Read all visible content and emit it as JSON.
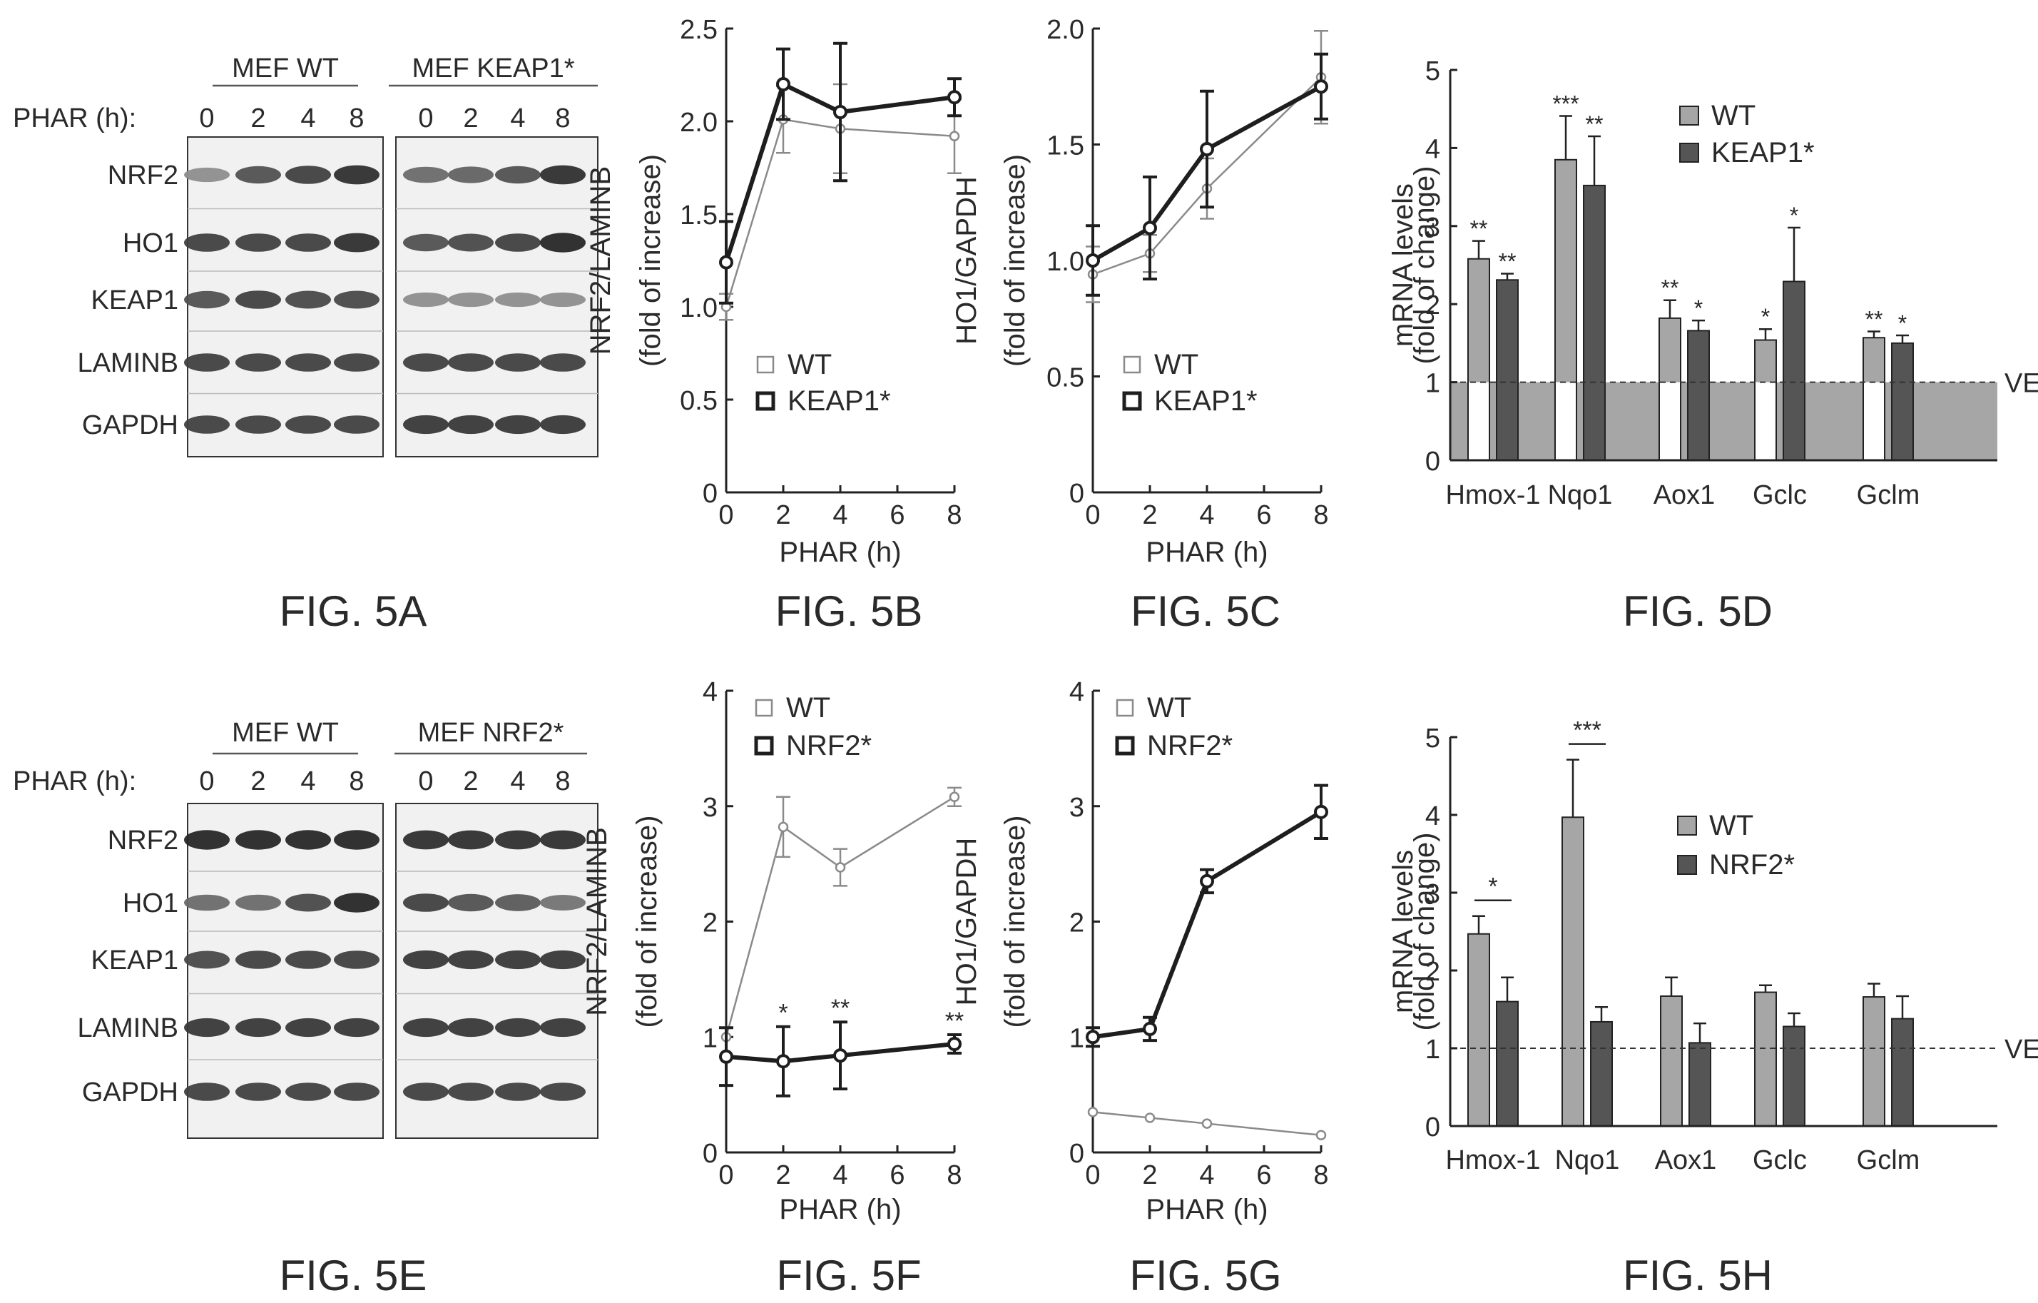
{
  "blots": [
    {
      "time_label": "PHAR (h):",
      "groups": [
        {
          "title": "MEF WT",
          "times": [
            "0",
            "2",
            "4",
            "8"
          ]
        },
        {
          "title": "MEF KEAP1*",
          "times": [
            "0",
            "2",
            "4",
            "8"
          ]
        }
      ],
      "rows": [
        "NRF2",
        "HO1",
        "KEAP1",
        "LAMINB",
        "GAPDH"
      ],
      "caption": "FIG. 5A"
    },
    {
      "time_label": "PHAR (h):",
      "groups": [
        {
          "title": "MEF WT",
          "times": [
            "0",
            "2",
            "4",
            "8"
          ]
        },
        {
          "title": "MEF NRF2*",
          "times": [
            "0",
            "2",
            "4",
            "8"
          ]
        }
      ],
      "rows": [
        "NRF2",
        "HO1",
        "KEAP1",
        "LAMINB",
        "GAPDH"
      ],
      "caption": "FIG. 5E"
    }
  ],
  "chart_data": [
    {
      "type": "line",
      "caption": "FIG. 5B",
      "xlabel": "PHAR (h)",
      "ylabel": [
        "NRF2/LAMINB",
        "(fold of increase)"
      ],
      "x": [
        0,
        2,
        4,
        8
      ],
      "xticks": [
        0,
        2,
        4,
        6,
        8
      ],
      "xlim": [
        0,
        8
      ],
      "yticks": [
        "0",
        "0.5",
        "1.0",
        "1.5",
        "2.0",
        "2.5"
      ],
      "ylim": [
        0,
        2.5
      ],
      "legend": "bottom-right",
      "series": [
        {
          "name": "WT",
          "style": "thin",
          "values": [
            1.0,
            2.01,
            1.96,
            1.92
          ],
          "err": [
            0.07,
            0.18,
            0.24,
            0.2
          ]
        },
        {
          "name": "KEAP1*",
          "style": "thick",
          "values": [
            1.24,
            2.2,
            2.05,
            2.13
          ],
          "err": [
            0.22,
            0.19,
            0.37,
            0.1
          ]
        }
      ]
    },
    {
      "type": "line",
      "caption": "FIG. 5C",
      "xlabel": "PHAR (h)",
      "ylabel": [
        "HO1/GAPDH",
        "(fold of increase)"
      ],
      "x": [
        0,
        2,
        4,
        8
      ],
      "xticks": [
        0,
        2,
        4,
        6,
        8
      ],
      "xlim": [
        0,
        8
      ],
      "yticks": [
        "0",
        "0.5",
        "1.0",
        "1.5",
        "2.0"
      ],
      "ylim": [
        0,
        2.0
      ],
      "legend": "bottom-right",
      "series": [
        {
          "name": "WT",
          "style": "thin",
          "values": [
            0.94,
            1.03,
            1.31,
            1.79
          ],
          "err": [
            0.12,
            0.08,
            0.13,
            0.2
          ]
        },
        {
          "name": "KEAP1*",
          "style": "thick",
          "values": [
            1.0,
            1.14,
            1.48,
            1.75
          ],
          "err": [
            0.15,
            0.22,
            0.25,
            0.14
          ]
        }
      ]
    },
    {
      "type": "bar",
      "caption": "FIG. 5D",
      "ylabel": [
        "mRNA levels",
        "(fold of change)"
      ],
      "categories": [
        "Hmox-1",
        "Nqo1",
        "Aox1",
        "Gclc",
        "Gclm"
      ],
      "yticks": [
        "0",
        "1",
        "2",
        "3",
        "4",
        "5"
      ],
      "ylim": [
        0,
        5
      ],
      "reference": {
        "value": 1,
        "label": "VEH"
      },
      "shaded_below_reference": true,
      "legend": "top-right",
      "series": [
        {
          "name": "WT",
          "values": [
            2.58,
            3.85,
            1.82,
            1.54,
            1.57
          ],
          "err": [
            0.23,
            0.56,
            0.23,
            0.14,
            0.08
          ],
          "sig": [
            "**",
            "***",
            "**",
            "*",
            "**"
          ]
        },
        {
          "name": "KEAP1*",
          "values": [
            2.31,
            3.52,
            1.66,
            2.29,
            1.5
          ],
          "err": [
            0.08,
            0.63,
            0.13,
            0.69,
            0.1
          ],
          "sig": [
            "**",
            "**",
            "*",
            "*",
            "*"
          ]
        }
      ]
    },
    {
      "type": "line",
      "caption": "FIG. 5F",
      "xlabel": "PHAR (h)",
      "ylabel": [
        "NRF2/LAMINB",
        "(fold of increase)"
      ],
      "x": [
        0,
        2,
        4,
        8
      ],
      "xticks": [
        0,
        2,
        4,
        6,
        8
      ],
      "xlim": [
        0,
        8
      ],
      "yticks": [
        "0",
        "1",
        "2",
        "3",
        "4"
      ],
      "ylim": [
        0,
        4
      ],
      "legend": "top-left",
      "series": [
        {
          "name": "WT",
          "style": "thin",
          "values": [
            1.0,
            2.82,
            2.47,
            3.08
          ],
          "err": [
            0.0,
            0.26,
            0.16,
            0.08
          ]
        },
        {
          "name": "NRF2*",
          "style": "thick",
          "values": [
            0.83,
            0.79,
            0.84,
            0.94
          ],
          "err": [
            0.25,
            0.3,
            0.29,
            0.08
          ],
          "sig": [
            "",
            "*",
            "**",
            "**"
          ]
        }
      ]
    },
    {
      "type": "line",
      "caption": "FIG. 5G",
      "xlabel": "PHAR (h)",
      "ylabel": [
        "HO1/GAPDH",
        "(fold of increase)"
      ],
      "x": [
        0,
        2,
        4,
        8
      ],
      "xticks": [
        0,
        2,
        4,
        6,
        8
      ],
      "xlim": [
        0,
        8
      ],
      "yticks": [
        "0",
        "1",
        "2",
        "3",
        "4"
      ],
      "ylim": [
        0,
        4
      ],
      "legend": "top-left",
      "series": [
        {
          "name": "WT",
          "style": "thin",
          "values": [
            0.35,
            0.3,
            0.25,
            0.15
          ],
          "err": [
            0.0,
            0.0,
            0.0,
            0.0
          ]
        },
        {
          "name": "NRF2*",
          "style": "thick",
          "values": [
            1.0,
            1.07,
            2.35,
            2.95
          ],
          "err": [
            0.08,
            0.1,
            0.1,
            0.23
          ]
        }
      ]
    },
    {
      "type": "bar",
      "caption": "FIG. 5H",
      "ylabel": [
        "mRNA levels",
        "(fold of change)"
      ],
      "categories": [
        "Hmox-1",
        "Nqo1",
        "Aox1",
        "Gclc",
        "Gclm"
      ],
      "yticks": [
        "0",
        "1",
        "2",
        "3",
        "4",
        "5"
      ],
      "ylim": [
        0,
        5
      ],
      "reference": {
        "value": 1,
        "label": "VEH"
      },
      "shaded_below_reference": false,
      "legend": "middle-right",
      "series": [
        {
          "name": "WT",
          "values": [
            2.47,
            3.97,
            1.67,
            1.72,
            1.66
          ],
          "err": [
            0.23,
            0.74,
            0.24,
            0.09,
            0.17
          ]
        },
        {
          "name": "NRF2*",
          "values": [
            1.6,
            1.34,
            1.07,
            1.28,
            1.38
          ],
          "err": [
            0.31,
            0.19,
            0.25,
            0.17,
            0.29
          ]
        }
      ],
      "comparisons": [
        {
          "category": 0,
          "label": "*"
        },
        {
          "category": 1,
          "label": "***"
        }
      ]
    }
  ],
  "colors": {
    "wt_bar": "#a6a6a6",
    "mut_bar": "#555555",
    "thin_line": "#8a8a8a",
    "thick_line": "#1e1e1e",
    "shade": "#a6a6a6",
    "axis": "#222222"
  }
}
